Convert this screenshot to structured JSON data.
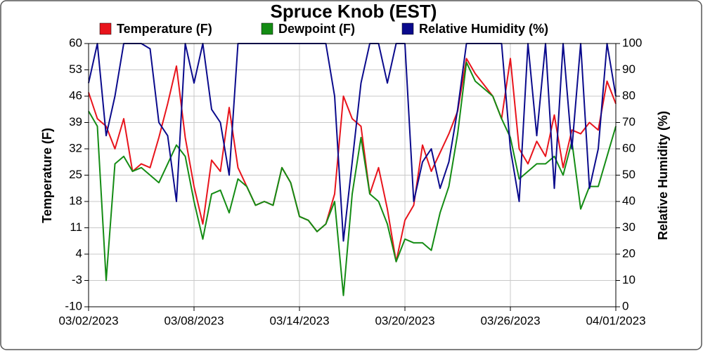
{
  "chart_data": {
    "type": "line",
    "title": "Spruce Knob (EST)",
    "y_label": "Temperature (F)",
    "y2_label": "Relative Humidity (%)",
    "x": [
      "2023-03-02T00:00",
      "2023-03-02T12:00",
      "2023-03-03T00:00",
      "2023-03-03T12:00",
      "2023-03-04T00:00",
      "2023-03-04T12:00",
      "2023-03-05T00:00",
      "2023-03-05T12:00",
      "2023-03-06T00:00",
      "2023-03-06T12:00",
      "2023-03-07T00:00",
      "2023-03-07T12:00",
      "2023-03-08T00:00",
      "2023-03-08T12:00",
      "2023-03-09T00:00",
      "2023-03-09T12:00",
      "2023-03-10T00:00",
      "2023-03-10T12:00",
      "2023-03-11T00:00",
      "2023-03-11T12:00",
      "2023-03-12T00:00",
      "2023-03-12T12:00",
      "2023-03-13T00:00",
      "2023-03-13T12:00",
      "2023-03-14T00:00",
      "2023-03-14T12:00",
      "2023-03-15T00:00",
      "2023-03-15T12:00",
      "2023-03-16T00:00",
      "2023-03-16T12:00",
      "2023-03-17T00:00",
      "2023-03-17T12:00",
      "2023-03-18T00:00",
      "2023-03-18T12:00",
      "2023-03-19T00:00",
      "2023-03-19T12:00",
      "2023-03-20T00:00",
      "2023-03-20T12:00",
      "2023-03-21T00:00",
      "2023-03-21T12:00",
      "2023-03-22T00:00",
      "2023-03-22T12:00",
      "2023-03-23T00:00",
      "2023-03-23T12:00",
      "2023-03-24T00:00",
      "2023-03-24T12:00",
      "2023-03-25T00:00",
      "2023-03-25T12:00",
      "2023-03-26T00:00",
      "2023-03-26T12:00",
      "2023-03-27T00:00",
      "2023-03-27T12:00",
      "2023-03-28T00:00",
      "2023-03-28T12:00",
      "2023-03-29T00:00",
      "2023-03-29T12:00",
      "2023-03-30T00:00",
      "2023-03-30T12:00",
      "2023-03-31T00:00",
      "2023-03-31T12:00",
      "2023-04-01T00:00"
    ],
    "series": [
      {
        "name": "Temperature (F)",
        "color": "#e8141c",
        "values": [
          47,
          40,
          38,
          32,
          40,
          26,
          28,
          27,
          35,
          44,
          54,
          35,
          22,
          12,
          29,
          26,
          43,
          27,
          22,
          17,
          18,
          17,
          27,
          23,
          14,
          13,
          10,
          12,
          20,
          46,
          40,
          38,
          20,
          27,
          16,
          2,
          13,
          17,
          33,
          26,
          31,
          36,
          42,
          56,
          52,
          49,
          46,
          40,
          56,
          32,
          28,
          34,
          30,
          41,
          27,
          37,
          36,
          39,
          37,
          50,
          44
        ]
      },
      {
        "name": "Dewpoint (F)",
        "color": "#148c14",
        "values": [
          42,
          38,
          -3,
          28,
          30,
          26,
          27,
          25,
          23,
          28,
          33,
          30,
          18,
          8,
          20,
          21,
          15,
          24,
          22,
          17,
          18,
          17,
          27,
          23,
          14,
          13,
          10,
          12,
          18,
          -7,
          20,
          35,
          20,
          18,
          12,
          2,
          8,
          7,
          7,
          5,
          15,
          22,
          36,
          55,
          50,
          48,
          46,
          40,
          35,
          24,
          26,
          28,
          28,
          30,
          25,
          34,
          16,
          22,
          22,
          30,
          38
        ]
      },
      {
        "name": "Relative Humidity (%)",
        "color": "#0a0a8c",
        "axis": "y2",
        "values": [
          85,
          100,
          65,
          80,
          100,
          100,
          100,
          98,
          70,
          65,
          40,
          100,
          85,
          100,
          75,
          70,
          50,
          100,
          100,
          100,
          100,
          100,
          100,
          100,
          100,
          100,
          100,
          100,
          80,
          25,
          55,
          85,
          100,
          100,
          85,
          100,
          100,
          40,
          55,
          60,
          45,
          55,
          75,
          100,
          100,
          100,
          100,
          100,
          60,
          40,
          100,
          65,
          100,
          45,
          100,
          60,
          100,
          45,
          60,
          100,
          80
        ]
      }
    ],
    "xlim": [
      "2023-03-02T00:00",
      "2023-04-01T00:00"
    ],
    "xticks": [
      {
        "value": "2023-03-02T00:00",
        "label": "03/02/2023"
      },
      {
        "value": "2023-03-08T00:00",
        "label": "03/08/2023"
      },
      {
        "value": "2023-03-14T00:00",
        "label": "03/14/2023"
      },
      {
        "value": "2023-03-20T00:00",
        "label": "03/20/2023"
      },
      {
        "value": "2023-03-26T00:00",
        "label": "03/26/2023"
      },
      {
        "value": "2023-04-01T00:00",
        "label": "04/01/2023"
      }
    ],
    "ylim": [
      -10,
      60
    ],
    "yticks": [
      -10,
      -3,
      4,
      11,
      18,
      25,
      32,
      39,
      46,
      53,
      60
    ],
    "y2lim": [
      0,
      100
    ],
    "y2ticks": [
      0,
      10,
      20,
      30,
      40,
      50,
      60,
      70,
      80,
      90,
      100
    ],
    "grid": true,
    "legend": "top"
  }
}
